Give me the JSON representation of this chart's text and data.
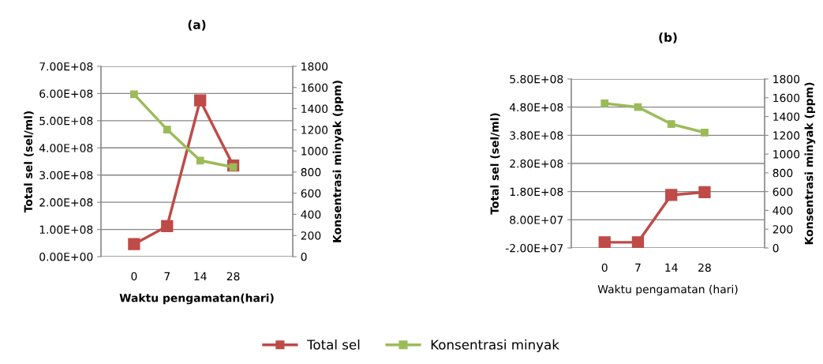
{
  "chart_data": [
    {
      "type": "line",
      "title": "(a)",
      "xlabel": "Waktu pengamatan(hari)",
      "ylabel": "Total sel (sel/ml)",
      "y2label": "Konsentrasi minyak (ppm)",
      "categories": [
        "0",
        "7",
        "14",
        "28"
      ],
      "series": [
        {
          "name": "Total sel",
          "color": "#be4b48",
          "values": [
            46000000,
            112000000,
            575000000,
            335000000
          ]
        },
        {
          "name": "Konsentrasi minyak",
          "color": "#9bbb59",
          "axis": "y2",
          "values": [
            1536,
            1202,
            909,
            846
          ]
        }
      ],
      "ylim": [
        0,
        700000000
      ],
      "yticks": [
        {
          "value": 0,
          "label": "0.00E+00"
        },
        {
          "value": 100000000,
          "label": "1.00E+08"
        },
        {
          "value": 200000000,
          "label": "2.00E+08"
        },
        {
          "value": 300000000,
          "label": "3.00E+08"
        },
        {
          "value": 400000000,
          "label": "4.00E+08"
        },
        {
          "value": 500000000,
          "label": "5.00E+08"
        },
        {
          "value": 600000000,
          "label": "6.00E+08"
        },
        {
          "value": 700000000,
          "label": "7.00E+08"
        }
      ],
      "y2lim": [
        0,
        1800
      ],
      "y2ticks": [
        0,
        200,
        400,
        600,
        800,
        1000,
        1200,
        1400,
        1600,
        1800
      ],
      "grid": "y",
      "marker": "square",
      "legend": "bottom"
    },
    {
      "type": "line",
      "title": "(b)",
      "xlabel": "Waktu pengamatan (hari)",
      "ylabel": "Total sel (sel/ml)",
      "y2label": "Konsentrasi minyak (ppm)",
      "categories": [
        "0",
        "7",
        "14",
        "28"
      ],
      "series": [
        {
          "name": "Total sel",
          "color": "#be4b48",
          "values": [
            0,
            0,
            168000000,
            178000000
          ]
        },
        {
          "name": "Konsentrasi minyak",
          "color": "#9bbb59",
          "axis": "y2",
          "values": [
            1540,
            1500,
            1320,
            1230
          ]
        }
      ],
      "ylim": [
        -20000000,
        580000000
      ],
      "yticks": [
        {
          "value": -20000000,
          "label": "-2.00E+07"
        },
        {
          "value": 80000000,
          "label": "8.00E+07"
        },
        {
          "value": 180000000,
          "label": "1.80E+08"
        },
        {
          "value": 280000000,
          "label": "2.80E+08"
        },
        {
          "value": 380000000,
          "label": "3.80E+08"
        },
        {
          "value": 480000000,
          "label": "4.80E+08"
        },
        {
          "value": 580000000,
          "label": "5.80E+08"
        }
      ],
      "y2lim": [
        0,
        1800
      ],
      "y2ticks": [
        0,
        200,
        400,
        600,
        800,
        1000,
        1200,
        1400,
        1600,
        1800
      ],
      "grid": "y",
      "marker": "square",
      "legend": "bottom"
    }
  ]
}
